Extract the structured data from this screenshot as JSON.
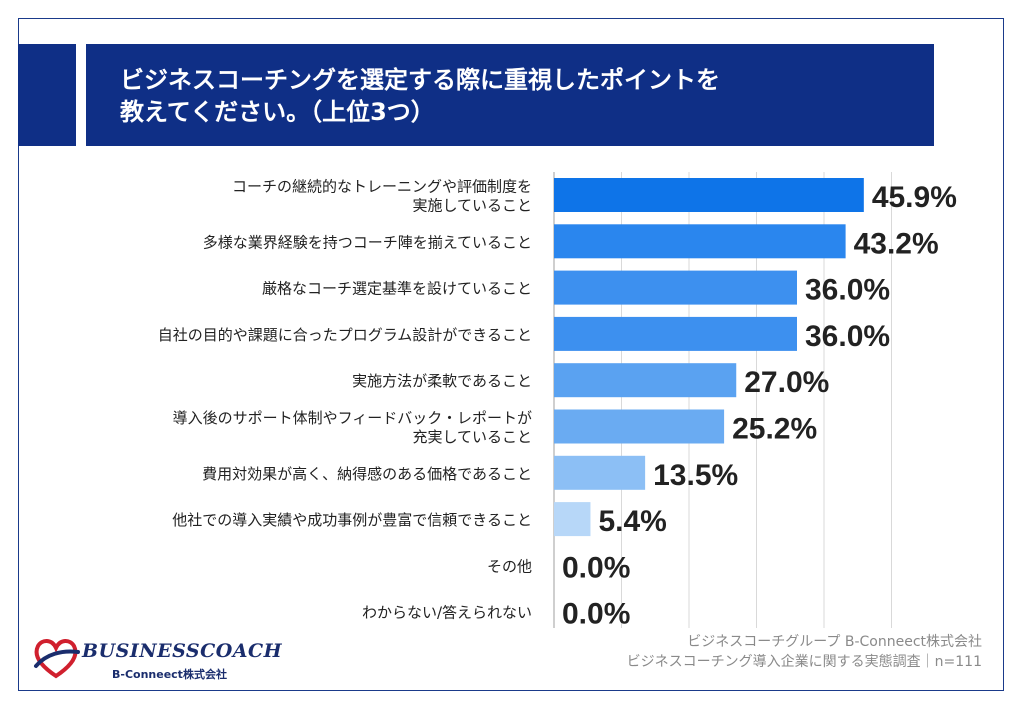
{
  "title": {
    "line1": "ビジネスコーチングを選定する際に重視したポイントを",
    "line2": "教えてください。（上位3つ）"
  },
  "chart_data": {
    "type": "bar",
    "orientation": "horizontal",
    "categories": [
      [
        "コーチの継続的なトレーニングや評価制度を",
        "実施していること"
      ],
      [
        "多様な業界経験を持つコーチ陣を揃えていること"
      ],
      [
        "厳格なコーチ選定基準を設けていること"
      ],
      [
        "自社の目的や課題に合ったプログラム設計ができること"
      ],
      [
        "実施方法が柔軟であること"
      ],
      [
        "導入後のサポート体制やフィードバック・レポートが",
        "充実していること"
      ],
      [
        "費用対効果が高く、納得感のある価格であること"
      ],
      [
        "他社での導入実績や成功事例が豊富で信頼できること"
      ],
      [
        "その他"
      ],
      [
        "わからない/答えられない"
      ]
    ],
    "values": [
      45.9,
      43.2,
      36.0,
      36.0,
      27.0,
      25.2,
      13.5,
      5.4,
      0.0,
      0.0
    ],
    "value_labels": [
      "45.9%",
      "43.2%",
      "36.0%",
      "36.0%",
      "27.0%",
      "25.2%",
      "13.5%",
      "5.4%",
      "0.0%",
      "0.0%"
    ],
    "xlim": [
      0,
      50
    ],
    "grid": true,
    "bar_colors": [
      "#0e74e8",
      "#2a86ee",
      "#3d90ef",
      "#3d90ef",
      "#5aa2f1",
      "#6aabf2",
      "#8cbff5",
      "#b7d7f8",
      "#cfe4fa",
      "#cfe4fa"
    ]
  },
  "footer": {
    "line1": "ビジネスコーチグループ B-Conneect株式会社",
    "line2": "ビジネスコーチング導入企業に関する実態調査｜n=111"
  },
  "logo": {
    "name": "BUSINESSCOACH",
    "sub": "B-Conneect株式会社"
  }
}
